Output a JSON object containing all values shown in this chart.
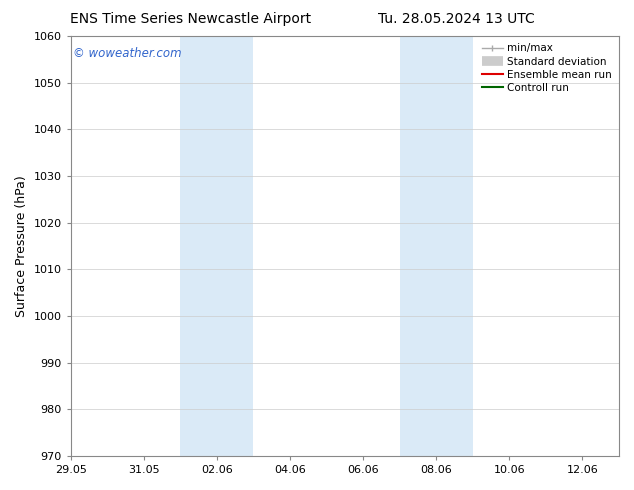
{
  "title_left": "ENS Time Series Newcastle Airport",
  "title_right": "Tu. 28.05.2024 13 UTC",
  "ylabel": "Surface Pressure (hPa)",
  "ylim": [
    970,
    1060
  ],
  "yticks": [
    970,
    980,
    990,
    1000,
    1010,
    1020,
    1030,
    1040,
    1050,
    1060
  ],
  "total_days": 15,
  "xtick_labels": [
    "29.05",
    "31.05",
    "02.06",
    "04.06",
    "06.06",
    "08.06",
    "10.06",
    "12.06"
  ],
  "xtick_positions": [
    0,
    2,
    4,
    6,
    8,
    10,
    12,
    14
  ],
  "shaded_bands": [
    {
      "x_start": 3,
      "x_end": 5,
      "color": "#daeaf7"
    },
    {
      "x_start": 9,
      "x_end": 11,
      "color": "#daeaf7"
    }
  ],
  "watermark_text": "© woweather.com",
  "watermark_color": "#3366cc",
  "background_color": "#ffffff",
  "plot_bg_color": "#ffffff",
  "grid_color": "#cccccc",
  "spine_color": "#888888",
  "legend_labels": [
    "min/max",
    "Standard deviation",
    "Ensemble mean run",
    "Controll run"
  ],
  "legend_colors": [
    "#aaaaaa",
    "#cccccc",
    "#dd0000",
    "#006600"
  ],
  "legend_lw": [
    1.0,
    6,
    1.5,
    1.5
  ],
  "title_fontsize": 10,
  "ylabel_fontsize": 9,
  "tick_fontsize": 8,
  "legend_fontsize": 7.5,
  "watermark_fontsize": 8.5
}
